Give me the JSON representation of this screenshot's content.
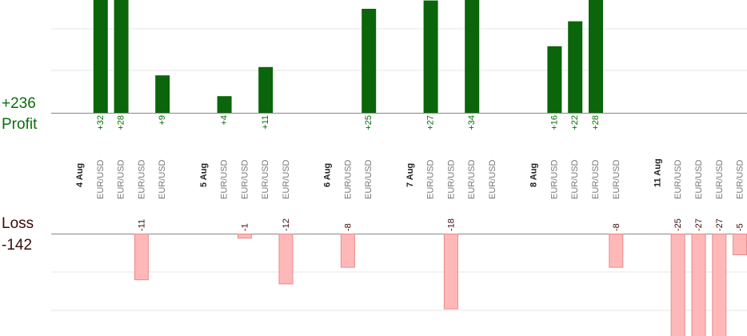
{
  "summary": {
    "profit_total": "+236",
    "profit_label": "Profit",
    "loss_label": "Loss",
    "loss_total": "-142"
  },
  "colors": {
    "profit_bar": "#0b650b",
    "profit_text": "#0a6e0a",
    "loss_bar_fill": "#ffb8b8",
    "loss_bar_stroke": "#e88a8a",
    "loss_text": "#3a0a0a",
    "date_text": "#222222",
    "pair_text": "#777777",
    "grid": "#e6e6e6",
    "axis": "#888888"
  },
  "chart_data": {
    "type": "bar",
    "scale_per_pip": 5.2,
    "dates": [
      {
        "label": "4 Aug",
        "slot": 0
      },
      {
        "label": "5 Aug",
        "slot": 6
      },
      {
        "label": "6 Aug",
        "slot": 12
      },
      {
        "label": "7 Aug",
        "slot": 16
      },
      {
        "label": "8 Aug",
        "slot": 22
      },
      {
        "label": "11 Aug",
        "slot": 28
      }
    ],
    "trades": [
      {
        "slot": 1,
        "pair": "EUR/USD",
        "value": 32
      },
      {
        "slot": 2,
        "pair": "EUR/USD",
        "value": 28
      },
      {
        "slot": 3,
        "pair": "EUR/USD",
        "value": -11
      },
      {
        "slot": 4,
        "pair": "EUR/USD",
        "value": 9
      },
      {
        "slot": 7,
        "pair": "EUR/USD",
        "value": 4
      },
      {
        "slot": 8,
        "pair": "EUR/USD",
        "value": -1
      },
      {
        "slot": 9,
        "pair": "EUR/USD",
        "value": 11
      },
      {
        "slot": 10,
        "pair": "EUR/USD",
        "value": -12
      },
      {
        "slot": 13,
        "pair": "EUR/USD",
        "value": -8
      },
      {
        "slot": 14,
        "pair": "EUR/USD",
        "value": 25
      },
      {
        "slot": 17,
        "pair": "EUR/USD",
        "value": 27
      },
      {
        "slot": 18,
        "pair": "EUR/USD",
        "value": -18
      },
      {
        "slot": 19,
        "pair": "EUR/USD",
        "value": 34
      },
      {
        "slot": 20,
        "pair": "EUR/USD",
        "value": null
      },
      {
        "slot": 23,
        "pair": "EUR/USD",
        "value": 16
      },
      {
        "slot": 24,
        "pair": "EUR/USD",
        "value": 22
      },
      {
        "slot": 25,
        "pair": "EUR/USD",
        "value": 28
      },
      {
        "slot": 26,
        "pair": "EUR/USD",
        "value": -8
      },
      {
        "slot": 29,
        "pair": "EUR/USD",
        "value": -25
      },
      {
        "slot": 30,
        "pair": "EUR/USD",
        "value": -27
      },
      {
        "slot": 31,
        "pair": "EUR/USD",
        "value": -27
      },
      {
        "slot": 32,
        "pair": "EUR/USD",
        "value": -5
      }
    ]
  }
}
